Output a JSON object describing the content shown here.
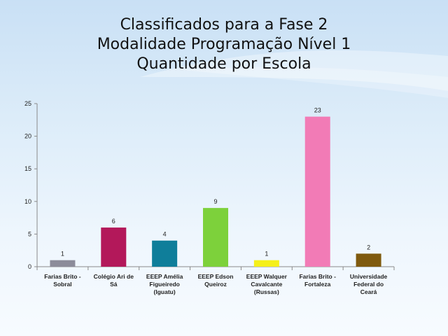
{
  "slide": {
    "title_lines": [
      "Classificados para a Fase 2",
      "Modalidade Programação Nível 1",
      "Quantidade por Escola"
    ]
  },
  "colors": {
    "background_top": "#c9e0f5",
    "background_bottom": "#f7fbff"
  },
  "chart_data": {
    "type": "bar",
    "categories": [
      [
        "Farias Brito -",
        "Sobral"
      ],
      [
        "Colégio Ari de",
        "Sá"
      ],
      [
        "EEEP Amélia",
        "Figueiredo",
        "(Iguatu)"
      ],
      [
        "EEEP Edson",
        "Queiroz"
      ],
      [
        "EEEP Walquer",
        "Cavalcante",
        "(Russas)"
      ],
      [
        "Farias Brito -",
        "Fortaleza"
      ],
      [
        "Universidade",
        "Federal do",
        "Ceará"
      ]
    ],
    "values": [
      1,
      6,
      4,
      9,
      1,
      23,
      2
    ],
    "data_labels": [
      "1",
      "6",
      "4",
      "9",
      "1",
      "23",
      "2"
    ],
    "colors": [
      "#8c8c9a",
      "#b3185a",
      "#0f7e9a",
      "#7dd13b",
      "#f5f01a",
      "#f27bb6",
      "#7f5a0e"
    ],
    "ylim": [
      0,
      25
    ],
    "yticks": [
      0,
      5,
      10,
      15,
      20,
      25
    ],
    "ytick_labels": [
      "0",
      "5",
      "10",
      "15",
      "20",
      "25"
    ],
    "grid": false,
    "legend": "none"
  }
}
